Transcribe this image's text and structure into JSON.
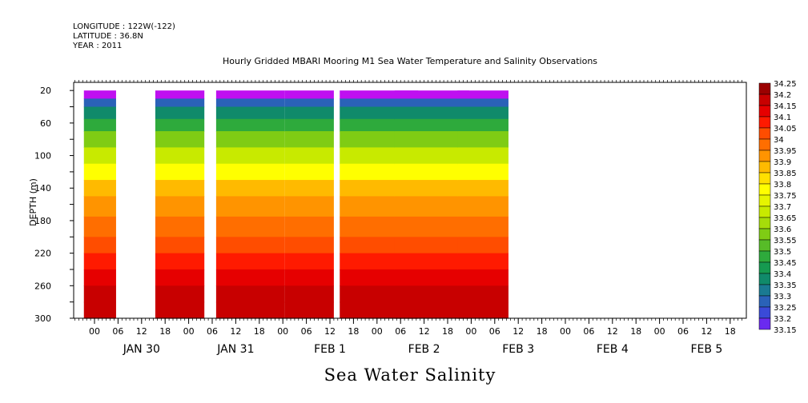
{
  "header": {
    "longitude": "LONGITUDE : 122W(-122)",
    "latitude": "LATITUDE : 36.8N",
    "year": "YEAR : 2011"
  },
  "chart_data": {
    "type": "heatmap",
    "title": "Hourly Gridded MBARI Mooring M1 Sea Water Temperature and Salinity Observations",
    "xlabel": "Sea Water Salinity",
    "ylabel": "DEPTH (m)",
    "ylim": [
      300,
      10
    ],
    "y_ticks": [
      20,
      60,
      100,
      140,
      180,
      220,
      260,
      300
    ],
    "x_hour_labels": [
      "00",
      "06",
      "12",
      "18",
      "00",
      "06",
      "12",
      "18",
      "00",
      "06",
      "12",
      "18",
      "00",
      "06",
      "12",
      "18",
      "00",
      "06",
      "12",
      "18",
      "00",
      "06",
      "12",
      "18",
      "00",
      "06",
      "12",
      "18"
    ],
    "x_day_labels": [
      "JAN 30",
      "JAN 31",
      "FEB  1",
      "FEB  2",
      "FEB  3",
      "FEB  4",
      "FEB  5"
    ],
    "data_segments_hours_from_jan30_00": [
      [
        1,
        3
      ],
      [
        19,
        29
      ],
      [
        38,
        50
      ],
      [
        53,
        59
      ],
      [
        67,
        82
      ],
      [
        73,
        94
      ],
      [
        96,
        103
      ]
    ],
    "depth_profile": [
      {
        "depth": 20,
        "salinity": 33.15
      },
      {
        "depth": 30,
        "salinity": 33.3
      },
      {
        "depth": 40,
        "salinity": 33.4
      },
      {
        "depth": 55,
        "salinity": 33.5
      },
      {
        "depth": 70,
        "salinity": 33.6
      },
      {
        "depth": 90,
        "salinity": 33.7
      },
      {
        "depth": 110,
        "salinity": 33.8
      },
      {
        "depth": 130,
        "salinity": 33.9
      },
      {
        "depth": 150,
        "salinity": 33.95
      },
      {
        "depth": 175,
        "salinity": 34.0
      },
      {
        "depth": 200,
        "salinity": 34.05
      },
      {
        "depth": 220,
        "salinity": 34.1
      },
      {
        "depth": 240,
        "salinity": 34.15
      },
      {
        "depth": 260,
        "salinity": 34.2
      },
      {
        "depth": 280,
        "salinity": 34.2
      },
      {
        "depth": 300,
        "salinity": 34.15
      }
    ],
    "colorbar": {
      "levels": [
        "34.25",
        "34.2",
        "34.15",
        "34.1",
        "34.05",
        "34",
        "33.95",
        "33.9",
        "33.85",
        "33.8",
        "33.75",
        "33.7",
        "33.65",
        "33.6",
        "33.55",
        "33.5",
        "33.45",
        "33.4",
        "33.35",
        "33.3",
        "33.25",
        "33.2",
        "33.15"
      ],
      "colors": [
        "#9b0000",
        "#c80000",
        "#e60000",
        "#ff1a00",
        "#ff4d00",
        "#ff6e00",
        "#ff9400",
        "#ffba00",
        "#ffe000",
        "#ffff00",
        "#e6f500",
        "#c8ea00",
        "#a6dc0a",
        "#7fcc14",
        "#57bc28",
        "#2eaa3c",
        "#169a50",
        "#108a6a",
        "#1a7a92",
        "#2a62b8",
        "#3a4ad8",
        "#6a2af0",
        "#bf10f0"
      ]
    }
  }
}
